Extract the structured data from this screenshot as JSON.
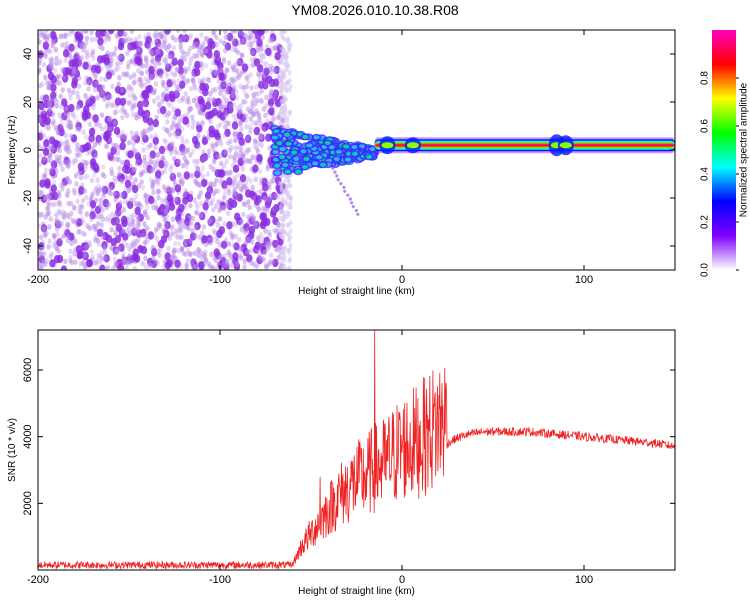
{
  "figure_title": "YM08.2026.010.10.38.R08",
  "chart_data": [
    {
      "type": "heatmap",
      "title": "",
      "xlabel": "Height of straight line (km)",
      "ylabel": "Frequency (Hz)",
      "xlim": [
        -200,
        150
      ],
      "ylim": [
        -50,
        50
      ],
      "xticks": [
        -200,
        -100,
        0,
        100
      ],
      "yticks": [
        -40,
        -20,
        0,
        20,
        40
      ],
      "grid": false,
      "colorbar": {
        "label": "Normalized spectral amplitude",
        "range": [
          0.0,
          1.0
        ],
        "ticks": [
          "0.0",
          "0.2",
          "0.4",
          "0.6",
          "0.8"
        ],
        "colormap": [
          "#ffffff",
          "#8000ff",
          "#0000ff",
          "#00ffff",
          "#00ff00",
          "#ffff00",
          "#ff0000",
          "#ff00c0"
        ]
      },
      "description_regions": {
        "noise_band_x": [
          -200,
          -65
        ],
        "scatter_cluster_x": [
          -70,
          -15
        ],
        "tone_line_x": [
          -15,
          150
        ],
        "tone_frequency_hz": 2
      }
    },
    {
      "type": "line",
      "title": "",
      "xlabel": "Height of straight line (km)",
      "ylabel": "SNR (10 * v/v)",
      "xlim": [
        -200,
        150
      ],
      "ylim": [
        0,
        7200
      ],
      "xticks": [
        -200,
        -100,
        0,
        100
      ],
      "yticks": [
        2000,
        4000,
        6000
      ],
      "grid": false,
      "series": [
        {
          "color": "#ee2222",
          "x": [
            -200,
            -180,
            -160,
            -140,
            -120,
            -100,
            -80,
            -60,
            -55,
            -50,
            -45,
            -40,
            -35,
            -30,
            -25,
            -20,
            -15,
            -10,
            -5,
            0,
            5,
            10,
            15,
            20,
            25,
            30,
            35,
            40,
            45,
            50,
            60,
            70,
            80,
            90,
            100,
            110,
            120,
            130,
            140,
            150
          ],
          "values": [
            150,
            150,
            150,
            150,
            150,
            150,
            150,
            150,
            600,
            900,
            1200,
            1500,
            1800,
            2000,
            2200,
            2300,
            2500,
            2600,
            2800,
            3000,
            3100,
            3200,
            3400,
            3600,
            3800,
            3950,
            4050,
            4100,
            4150,
            4150,
            4150,
            4150,
            4100,
            4050,
            4000,
            3950,
            3900,
            3850,
            3800,
            3700
          ],
          "peaks": [
            {
              "x": -15,
              "y": 7200
            },
            {
              "x": 12,
              "y": 4800
            },
            {
              "x": -45,
              "y": 2800
            }
          ]
        }
      ]
    }
  ]
}
